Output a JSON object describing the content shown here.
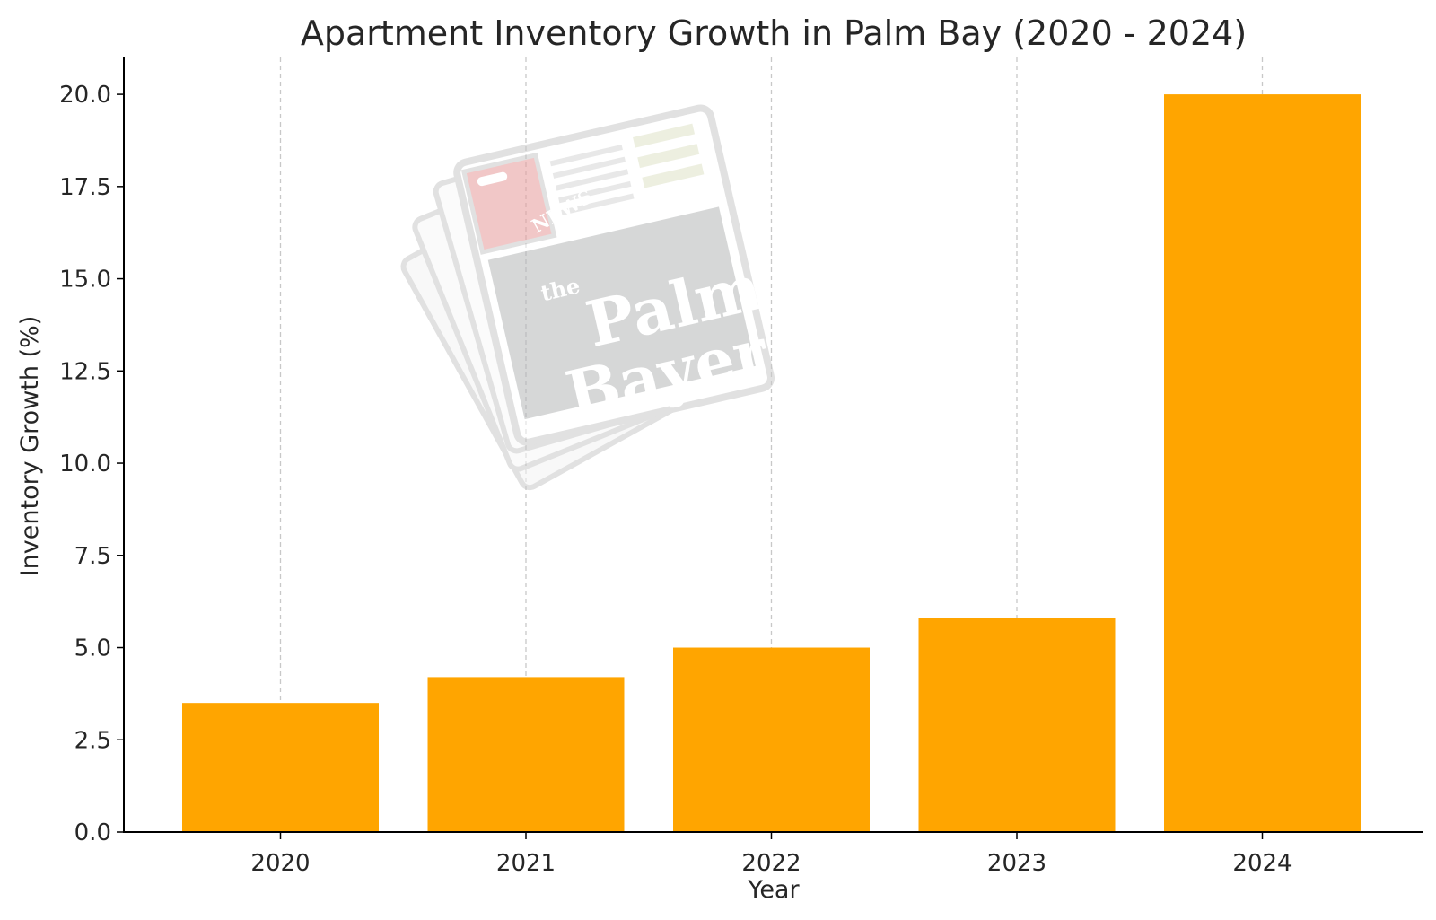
{
  "chart_data": {
    "type": "bar",
    "title": "Apartment Inventory Growth in Palm Bay (2020 - 2024)",
    "xlabel": "Year",
    "ylabel": "Inventory Growth (%)",
    "categories": [
      "2020",
      "2021",
      "2022",
      "2023",
      "2024"
    ],
    "values": [
      3.5,
      4.2,
      5.0,
      5.8,
      20.0
    ],
    "ylim": [
      0,
      21
    ],
    "yticks": [
      "0.0",
      "2.5",
      "5.0",
      "7.5",
      "10.0",
      "12.5",
      "15.0",
      "17.5",
      "20.0"
    ],
    "grid": "vertical dashed",
    "bar_color": "#FFA500",
    "grid_color": "#c8c8c8",
    "watermark": {
      "word1": "NEWS",
      "word2": "the",
      "word3": "Palm",
      "word4": "Bayer"
    }
  }
}
